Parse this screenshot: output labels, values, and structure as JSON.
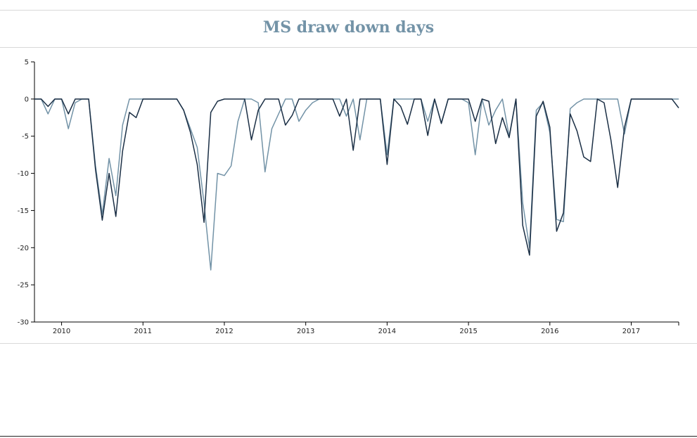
{
  "title": "MS draw down days",
  "chart_data": {
    "type": "line",
    "title": "MS draw down days",
    "xlabel": "",
    "ylabel": "",
    "ylim": [
      -30,
      5
    ],
    "yticks": [
      5,
      0,
      -5,
      -10,
      -15,
      -20,
      -25,
      -30
    ],
    "xlim": [
      "2009-09-01",
      "2017-08-01"
    ],
    "xticks": [
      "2010",
      "2011",
      "2012",
      "2013",
      "2014",
      "2015",
      "2016",
      "2017"
    ],
    "grid": false,
    "legend": "none",
    "x": [
      "2009-09",
      "2009-10",
      "2009-11",
      "2009-12",
      "2010-01",
      "2010-02",
      "2010-03",
      "2010-04",
      "2010-05",
      "2010-06",
      "2010-07",
      "2010-08",
      "2010-09",
      "2010-10",
      "2010-11",
      "2010-12",
      "2011-01",
      "2011-02",
      "2011-03",
      "2011-04",
      "2011-05",
      "2011-06",
      "2011-07",
      "2011-08",
      "2011-09",
      "2011-10",
      "2011-11",
      "2011-12",
      "2012-01",
      "2012-02",
      "2012-03",
      "2012-04",
      "2012-05",
      "2012-06",
      "2012-07",
      "2012-08",
      "2012-09",
      "2012-10",
      "2012-11",
      "2012-12",
      "2013-01",
      "2013-02",
      "2013-03",
      "2013-04",
      "2013-05",
      "2013-06",
      "2013-07",
      "2013-08",
      "2013-09",
      "2013-10",
      "2013-11",
      "2013-12",
      "2014-01",
      "2014-02",
      "2014-03",
      "2014-04",
      "2014-05",
      "2014-06",
      "2014-07",
      "2014-08",
      "2014-09",
      "2014-10",
      "2014-11",
      "2014-12",
      "2015-01",
      "2015-02",
      "2015-03",
      "2015-04",
      "2015-05",
      "2015-06",
      "2015-07",
      "2015-08",
      "2015-09",
      "2015-10",
      "2015-11",
      "2015-12",
      "2016-01",
      "2016-02",
      "2016-03",
      "2016-04",
      "2016-05",
      "2016-06",
      "2016-07",
      "2016-08",
      "2016-09",
      "2016-10",
      "2016-11",
      "2016-12",
      "2017-01",
      "2017-02",
      "2017-03",
      "2017-04",
      "2017-05",
      "2017-06",
      "2017-07",
      "2017-08"
    ],
    "series": [
      {
        "color": "#7393a7",
        "values": [
          0,
          0,
          -2,
          0,
          0,
          -4,
          -0.5,
          0,
          0,
          -9,
          -15.5,
          -8,
          -13,
          -3.5,
          0,
          0,
          0,
          0,
          0,
          0,
          0,
          0,
          -1.5,
          -4,
          -6.5,
          -14,
          -23,
          -10,
          -10.3,
          -9,
          -3,
          0,
          0,
          -0.5,
          -9.8,
          -4,
          -2,
          0,
          0,
          -3,
          -1.5,
          -0.5,
          0,
          0,
          0,
          0,
          -2.3,
          0,
          -5.5,
          0,
          0,
          0,
          -7.5,
          0,
          0,
          0,
          0,
          0,
          -3,
          0,
          -3.2,
          0,
          0,
          0,
          -0.5,
          -7.5,
          0,
          -3.5,
          -1.5,
          0,
          -5,
          0,
          -14,
          -20,
          -1.5,
          -0.5,
          -4.5,
          -16.2,
          -16.5,
          -1.3,
          -0.5,
          0,
          0,
          0,
          0,
          0,
          0,
          -4.7,
          0,
          0,
          0,
          0,
          0,
          0,
          0,
          0
        ]
      },
      {
        "color": "#1b2f45",
        "values": [
          0,
          0,
          -1,
          0,
          0,
          -2,
          0,
          0,
          0,
          -9.5,
          -16.3,
          -10,
          -15.8,
          -7,
          -1.8,
          -2.5,
          0,
          0,
          0,
          0,
          0,
          0,
          -1.5,
          -4.5,
          -8.8,
          -16.6,
          -1.8,
          -0.3,
          0,
          0,
          0,
          0,
          -5.5,
          -1.5,
          0,
          0,
          0,
          -3.5,
          -2.2,
          0,
          0,
          0,
          0,
          0,
          0,
          -2.3,
          0,
          -6.9,
          0,
          0,
          0,
          0,
          -8.8,
          0,
          -1,
          -3.4,
          0,
          0,
          -4.9,
          0,
          -3.3,
          0,
          0,
          0,
          0,
          -3,
          0,
          -0.3,
          -6,
          -2.5,
          -5.2,
          0,
          -17,
          -21,
          -2.3,
          -0.3,
          -3.8,
          -17.8,
          -15.3,
          -2,
          -4.3,
          -7.8,
          -8.4,
          0,
          -0.5,
          -5.5,
          -11.9,
          -3.8,
          0,
          0,
          0,
          0,
          0,
          0,
          0,
          -1.2
        ]
      }
    ]
  }
}
